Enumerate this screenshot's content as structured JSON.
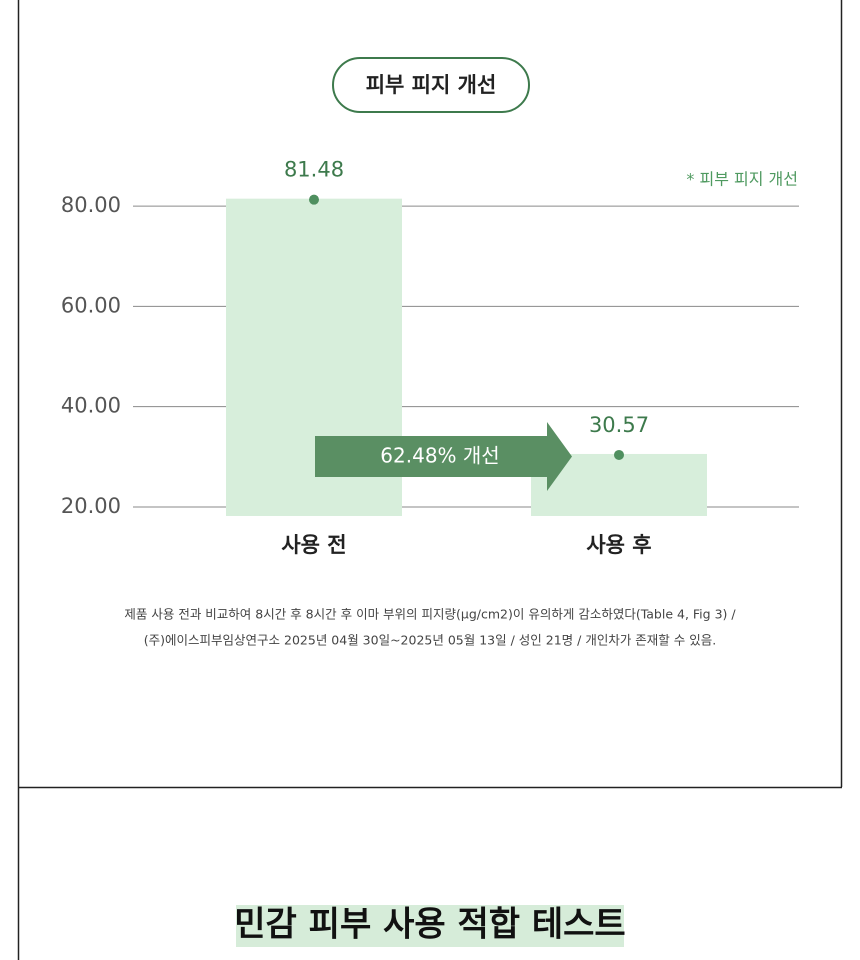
{
  "section_title": "피부 피지 개선",
  "chart_data": {
    "type": "bar",
    "categories": [
      "사용 전",
      "사용 후"
    ],
    "values": [
      81.48,
      30.57
    ],
    "color": "#d7eedb",
    "ylim": [
      18.2,
      86
    ],
    "yticks": [
      {
        "value": 20,
        "label": "20.00"
      },
      {
        "value": 40,
        "label": "40.00"
      },
      {
        "value": 60,
        "label": "60.00"
      },
      {
        "value": 80,
        "label": "80.00"
      }
    ],
    "grid": true,
    "legend_note": "* 피부 피지 개선",
    "annotation": "62.48% 개선"
  },
  "footnote": [
    "제품 사용 전과 비교하여 8시간 후 8시간 후 이마 부위의 피지량(μg/cm2)이 유의하게 감소하였다(Table 4, Fig 3) /",
    "(주)에이스피부임상연구소 2025년 04월 30일~2025년 05월 13일 / 성인 21명 / 개인차가 존재할 수 있음."
  ],
  "next_section_title": "민감 피부 사용 적합 테스트"
}
